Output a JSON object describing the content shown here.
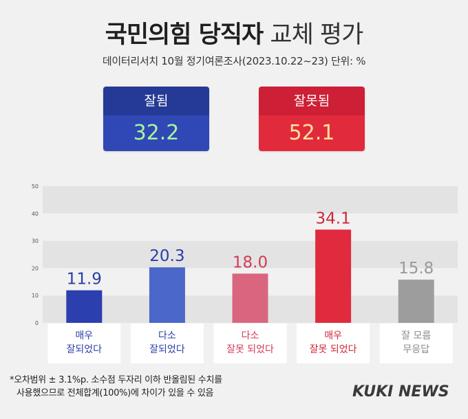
{
  "header": {
    "title_bold": "국민의힘 당직자",
    "title_light": "교체 평가",
    "subtitle": "데이터리서치 10월 정기여론조사(2023.10.22~23) 단위: %"
  },
  "summary": {
    "good": {
      "label": "잘됨",
      "value": "32.2"
    },
    "bad": {
      "label": "잘못됨",
      "value": "52.1"
    }
  },
  "chart_data": {
    "type": "bar",
    "categories": [
      [
        "매우",
        "잘되었다"
      ],
      [
        "다소",
        "잘되었다"
      ],
      [
        "다소",
        "잘못 되었다"
      ],
      [
        "매우",
        "잘못 되었다"
      ],
      [
        "잘 모름",
        "무응답"
      ]
    ],
    "values": [
      11.9,
      20.3,
      18.0,
      34.1,
      15.8
    ],
    "value_labels": [
      "11.9",
      "20.3",
      "18.0",
      "34.1",
      "15.8"
    ],
    "colors": [
      "#2b3fae",
      "#4a67c9",
      "#d9667e",
      "#e12a3e",
      "#9d9d9d"
    ],
    "category_colors": [
      "#2a3ea8",
      "#2a3ea8",
      "#d43a55",
      "#d0263a",
      "#888888"
    ],
    "yticks": [
      "0",
      "10",
      "20",
      "30",
      "40",
      "50"
    ],
    "ylim": [
      0,
      50
    ],
    "grid": "alternating bands"
  },
  "footnote": {
    "line1": "*오차범위 ± 3.1%p. 소수점 두자리 이하 반올림된 수치를",
    "line2": "사용했으므로 전체합계(100%)에 차이가 있을 수 있음"
  },
  "brand": {
    "logo": "KUKI NEWS"
  }
}
